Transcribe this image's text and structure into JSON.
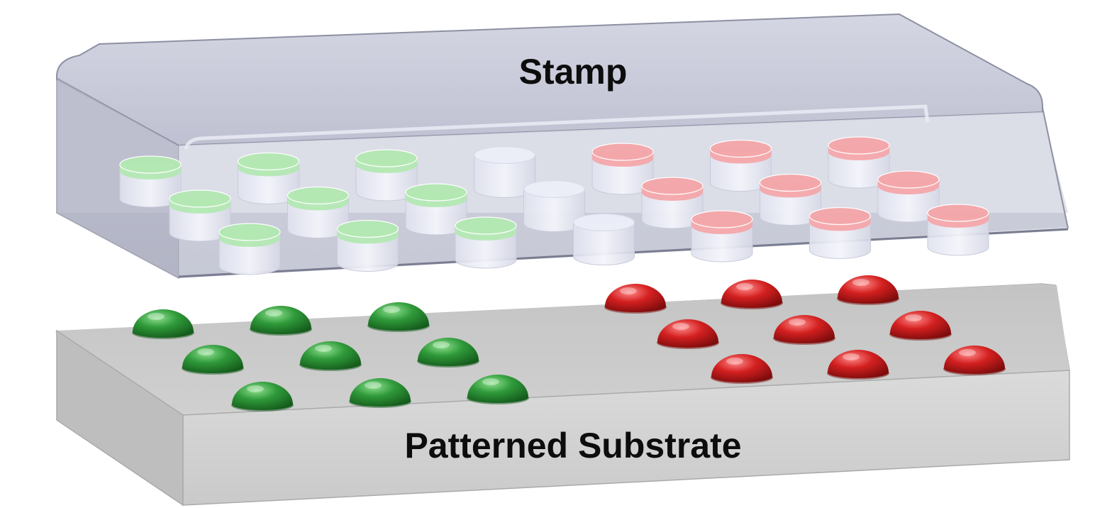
{
  "stamp": {
    "label": "Stamp",
    "colors": {
      "top": "#c4c6d6",
      "front": "#a9acbd",
      "inner_floor": "#d5d7e3",
      "edge": "#8d90a3",
      "post_green": "#b3e8b3",
      "post_red": "#f4a7aa",
      "post_empty": "#eceef8"
    },
    "rows": [
      [
        "green",
        "green",
        "green",
        "empty",
        "red",
        "red",
        "red"
      ],
      [
        "green",
        "green",
        "green",
        "empty",
        "red",
        "red",
        "red"
      ],
      [
        "green",
        "green",
        "green",
        "empty",
        "red",
        "red",
        "red"
      ]
    ]
  },
  "substrate": {
    "label": "Patterned Substrate",
    "colors": {
      "top": "#c8c9c8",
      "front": "#d3d4d3",
      "edge": "#a9aaa9",
      "drop_green": "#2f9a3a",
      "drop_red": "#d42020"
    },
    "rows": [
      [
        "green",
        "green",
        "green",
        "red",
        "red",
        "red"
      ],
      [
        "green",
        "green",
        "green",
        "red",
        "red",
        "red"
      ],
      [
        "green",
        "green",
        "green",
        "red",
        "red",
        "red"
      ]
    ]
  }
}
